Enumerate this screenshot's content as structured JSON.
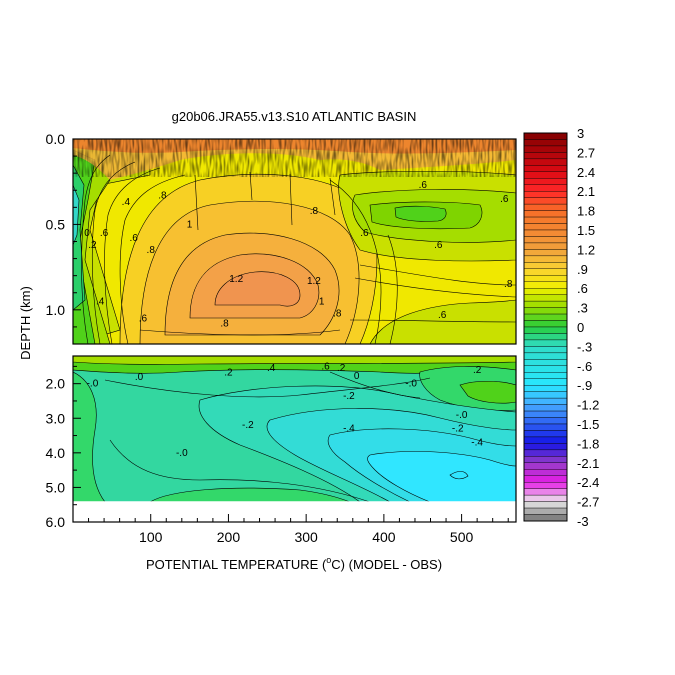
{
  "chart_data": {
    "type": "heatmap",
    "title": "g20b06.JRA55.v13.S10 ATLANTIC BASIN",
    "xlabel": "POTENTIAL TEMPERATURE (",
    "xlabel_sup": "o",
    "xlabel_end": "C) (MODEL - OBS)",
    "ylabel": "DEPTH (km)",
    "xlim": [
      0,
      570
    ],
    "x_ticks": [
      "100",
      "200",
      "300",
      "400",
      "500"
    ],
    "x_tick_values": [
      100,
      200,
      300,
      400,
      500
    ],
    "upper_panel": {
      "ylim": [
        0.0,
        1.2
      ],
      "y_ticks": [
        "0.0",
        "0.5",
        "1.0"
      ],
      "y_tick_values": [
        0.0,
        0.5,
        1.0
      ]
    },
    "lower_panel": {
      "ylim": [
        1.2,
        6.0
      ],
      "y_ticks": [
        "2.0",
        "3.0",
        "4.0",
        "5.0",
        "6.0"
      ],
      "y_tick_values": [
        2.0,
        3.0,
        4.0,
        5.0,
        6.0
      ],
      "data_bottom_depth": 5.4
    },
    "contour_labels_upper": [
      {
        "text": ".6",
        "x": 40,
        "y": 0.55
      },
      {
        "text": ".4",
        "x": 35,
        "y": 0.95
      },
      {
        "text": "0",
        "x": 18,
        "y": 0.55
      },
      {
        "text": ".2",
        "x": 25,
        "y": 0.62
      },
      {
        "text": ".4",
        "x": 68,
        "y": 0.37
      },
      {
        "text": ".6",
        "x": 78,
        "y": 0.58
      },
      {
        "text": ".8",
        "x": 100,
        "y": 0.65
      },
      {
        "text": ".8",
        "x": 115,
        "y": 0.33
      },
      {
        "text": "1",
        "x": 150,
        "y": 0.5
      },
      {
        "text": "1.2",
        "x": 210,
        "y": 0.82
      },
      {
        "text": "1.2",
        "x": 310,
        "y": 0.83
      },
      {
        "text": "1",
        "x": 320,
        "y": 0.95
      },
      {
        "text": ".8",
        "x": 310,
        "y": 0.42
      },
      {
        "text": ".8",
        "x": 340,
        "y": 1.02
      },
      {
        "text": ".6",
        "x": 375,
        "y": 0.55
      },
      {
        "text": ".6",
        "x": 470,
        "y": 0.62
      },
      {
        "text": ".6",
        "x": 450,
        "y": 0.27
      },
      {
        "text": ".6",
        "x": 555,
        "y": 0.35
      },
      {
        "text": ".8",
        "x": 560,
        "y": 0.85
      },
      {
        "text": ".6",
        "x": 475,
        "y": 1.03
      },
      {
        "text": ".6",
        "x": 90,
        "y": 1.05
      },
      {
        "text": ".8",
        "x": 195,
        "y": 1.08
      }
    ],
    "contour_labels_lower": [
      {
        "text": "-.0",
        "x": 25,
        "y": 2.0
      },
      {
        "text": ".0",
        "x": 85,
        "y": 1.8
      },
      {
        "text": ".2",
        "x": 200,
        "y": 1.68
      },
      {
        "text": ".4",
        "x": 255,
        "y": 1.55
      },
      {
        "text": ".6",
        "x": 325,
        "y": 1.5
      },
      {
        "text": ".2",
        "x": 345,
        "y": 1.55
      },
      {
        "text": "0",
        "x": 365,
        "y": 1.78
      },
      {
        "text": ".2",
        "x": 520,
        "y": 1.6
      },
      {
        "text": "-.0",
        "x": 435,
        "y": 2.0
      },
      {
        "text": "-.2",
        "x": 355,
        "y": 2.35
      },
      {
        "text": "-.2",
        "x": 225,
        "y": 3.2
      },
      {
        "text": "-.0",
        "x": 140,
        "y": 4.0
      },
      {
        "text": "-.4",
        "x": 355,
        "y": 3.3
      },
      {
        "text": "-.0",
        "x": 500,
        "y": 2.9
      },
      {
        "text": "-.2",
        "x": 495,
        "y": 3.3
      },
      {
        "text": "-.4",
        "x": 520,
        "y": 3.7
      }
    ],
    "colorbar": {
      "labels": [
        "3",
        "2.7",
        "2.4",
        "2.1",
        "1.8",
        "1.5",
        "1.2",
        ".9",
        ".6",
        ".3",
        "0",
        "-.3",
        "-.6",
        "-.9",
        "-1.2",
        "-1.5",
        "-1.8",
        "-2.1",
        "-2.4",
        "-2.7",
        "-3"
      ],
      "min": -3,
      "max": 3,
      "step": 0.1
    }
  }
}
